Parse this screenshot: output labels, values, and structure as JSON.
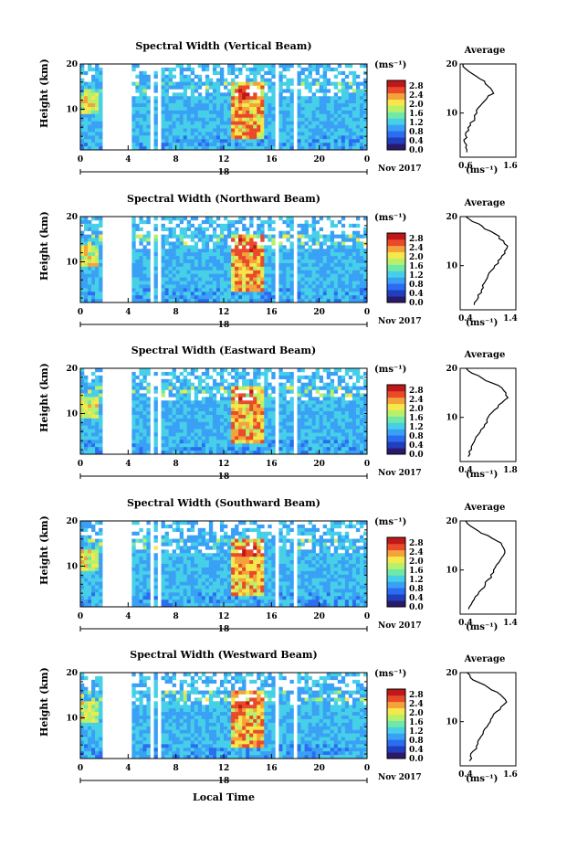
{
  "x_axis_label": "Local Time",
  "date_label": "Nov 2017",
  "unit_label": "(ms⁻¹)",
  "avg_title": "Average",
  "height_label": "Height (km)",
  "x_ticks": [
    "0",
    "4",
    "8",
    "12",
    "16",
    "20",
    "0"
  ],
  "day_marker": "18",
  "colorbar_ticks": [
    "2.8",
    "2.4",
    "2.0",
    "1.6",
    "1.2",
    "0.8",
    "0.4",
    "0.0"
  ],
  "colors": {
    "scale": [
      "#2a1a6e",
      "#1f3fbf",
      "#2b6cf0",
      "#3aa0f5",
      "#46d0e8",
      "#6fe8a8",
      "#b8f06a",
      "#f5e84a",
      "#f5a23a",
      "#e84a2a",
      "#c01818"
    ],
    "gap": "#ffffff"
  },
  "chart_data": [
    {
      "type": "heatmap",
      "title": "Spectral Width (Vertical Beam)",
      "xlabel": "Local Time",
      "ylabel": "Height (km)",
      "xlim": [
        0,
        24
      ],
      "ylim": [
        1,
        20
      ],
      "clim": [
        0.0,
        3.0
      ],
      "yticks": [
        10,
        20
      ],
      "avg_profile": {
        "xlim": [
          0.6,
          1.6
        ],
        "xticks": [
          "0.6",
          "1.6"
        ],
        "yticks": [
          "10",
          "20"
        ],
        "height": [
          2,
          3,
          4,
          5,
          6,
          7,
          8,
          9,
          10,
          11,
          12,
          13,
          14,
          15,
          16,
          17,
          18,
          19,
          20
        ],
        "value": [
          0.72,
          0.7,
          0.68,
          0.72,
          0.7,
          0.74,
          0.78,
          0.86,
          0.9,
          0.92,
          1.0,
          1.08,
          1.2,
          1.15,
          1.05,
          0.95,
          0.82,
          0.7,
          0.65
        ]
      }
    },
    {
      "type": "heatmap",
      "title": "Spectral Width (Northward Beam)",
      "xlabel": "Local Time",
      "ylabel": "Height (km)",
      "xlim": [
        0,
        24
      ],
      "ylim": [
        1,
        20
      ],
      "clim": [
        0.0,
        3.0
      ],
      "yticks": [
        10,
        20
      ],
      "avg_profile": {
        "xlim": [
          0.4,
          1.4
        ],
        "xticks": [
          "0.4",
          "1.4"
        ],
        "yticks": [
          "10",
          "20"
        ],
        "height": [
          2,
          3,
          4,
          5,
          6,
          7,
          8,
          9,
          10,
          11,
          12,
          13,
          14,
          15,
          16,
          17,
          18,
          19,
          20
        ],
        "value": [
          0.65,
          0.7,
          0.72,
          0.78,
          0.8,
          0.86,
          0.9,
          0.96,
          1.02,
          1.08,
          1.15,
          1.2,
          1.25,
          1.18,
          1.1,
          0.95,
          0.8,
          0.62,
          0.5
        ]
      }
    },
    {
      "type": "heatmap",
      "title": "Spectral Width (Eastward Beam)",
      "xlabel": "Local Time",
      "ylabel": "Height (km)",
      "xlim": [
        0,
        24
      ],
      "ylim": [
        1,
        20
      ],
      "clim": [
        0.0,
        3.0
      ],
      "yticks": [
        10,
        20
      ],
      "avg_profile": {
        "xlim": [
          0.4,
          1.8
        ],
        "xticks": [
          "0.4",
          "1.8"
        ],
        "yticks": [
          "10",
          "20"
        ],
        "height": [
          2,
          3,
          4,
          5,
          6,
          7,
          8,
          9,
          10,
          11,
          12,
          13,
          14,
          15,
          16,
          17,
          18,
          19,
          20
        ],
        "value": [
          0.6,
          0.62,
          0.68,
          0.75,
          0.8,
          0.9,
          1.0,
          1.08,
          1.1,
          1.2,
          1.35,
          1.45,
          1.6,
          1.55,
          1.45,
          1.2,
          0.95,
          0.7,
          0.55
        ]
      }
    },
    {
      "type": "heatmap",
      "title": "Spectral Width (Southward Beam)",
      "xlabel": "Local Time",
      "ylabel": "Height (km)",
      "xlim": [
        0,
        24
      ],
      "ylim": [
        1,
        20
      ],
      "clim": [
        0.0,
        3.0
      ],
      "yticks": [
        10,
        20
      ],
      "avg_profile": {
        "xlim": [
          0.4,
          1.4
        ],
        "xticks": [
          "0.4",
          "1.4"
        ],
        "yticks": [
          "10",
          "20"
        ],
        "height": [
          2,
          3,
          4,
          5,
          6,
          7,
          8,
          9,
          10,
          11,
          12,
          13,
          14,
          15,
          16,
          17,
          18,
          19,
          20
        ],
        "value": [
          0.55,
          0.6,
          0.65,
          0.72,
          0.78,
          0.85,
          0.9,
          0.95,
          1.0,
          1.05,
          1.12,
          1.18,
          1.2,
          1.15,
          1.05,
          0.9,
          0.72,
          0.58,
          0.5
        ]
      }
    },
    {
      "type": "heatmap",
      "title": "Spectral Width (Westward Beam)",
      "xlabel": "Local Time",
      "ylabel": "Height (km)",
      "xlim": [
        0,
        24
      ],
      "ylim": [
        1,
        20
      ],
      "clim": [
        0.0,
        3.0
      ],
      "yticks": [
        10,
        20
      ],
      "avg_profile": {
        "xlim": [
          0.4,
          1.6
        ],
        "xticks": [
          "0.4",
          "1.6"
        ],
        "yticks": [
          "10",
          "20"
        ],
        "height": [
          2,
          3,
          4,
          5,
          6,
          7,
          8,
          9,
          10,
          11,
          12,
          13,
          14,
          15,
          16,
          17,
          18,
          19,
          20
        ],
        "value": [
          0.6,
          0.62,
          0.68,
          0.75,
          0.78,
          0.85,
          0.9,
          0.98,
          1.05,
          1.1,
          1.18,
          1.28,
          1.4,
          1.32,
          1.2,
          1.0,
          0.8,
          0.62,
          0.55
        ]
      }
    }
  ]
}
